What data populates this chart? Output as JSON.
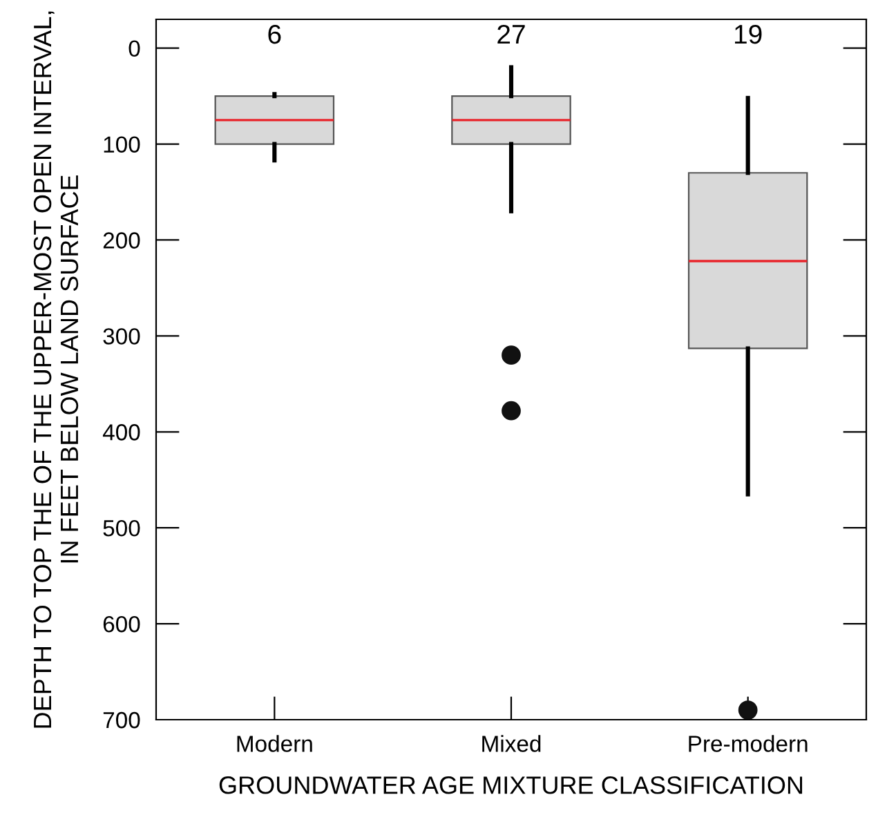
{
  "chart_data": {
    "type": "box",
    "categories": [
      "Modern",
      "Mixed",
      "Pre-modern"
    ],
    "xlabel": "GROUNDWATER AGE MIXTURE CLASSIFICATION",
    "ylabel": "DEPTH TO TOP THE OF THE UPPER-MOST OPEN INTERVAL,\nIN FEET BELOW LAND SURFACE",
    "boxes": [
      {
        "low": 48,
        "q1": 50,
        "median": 75,
        "q3": 100,
        "high": 117
      },
      {
        "low": 20,
        "q1": 50,
        "median": 75,
        "q3": 100,
        "high": 170,
        "outliers": [
          320,
          378
        ]
      },
      {
        "low": 52,
        "q1": 130,
        "median": 222,
        "q3": 313,
        "high": 465,
        "outliers": [
          690
        ]
      }
    ],
    "colors": [
      "#d9d9d9",
      "#d9d9d9",
      "#d9d9d9"
    ],
    "ylim": [
      700,
      -30
    ],
    "yticks": [
      0,
      100,
      200,
      300,
      400,
      500,
      600,
      700
    ],
    "grid": false,
    "annotations": [
      "6",
      "27",
      "19"
    ]
  }
}
